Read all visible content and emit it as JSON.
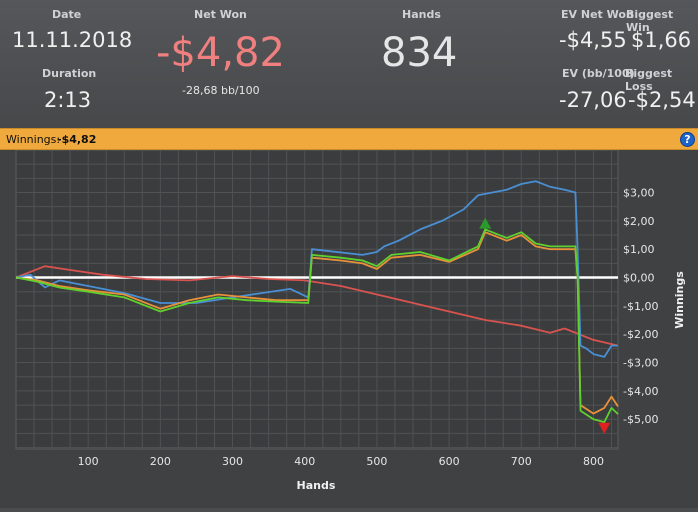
{
  "stats": {
    "date_label": "Date",
    "date_value": "11.11.2018",
    "duration_label": "Duration",
    "duration_value": "2:13",
    "net_won_label": "Net Won",
    "net_won_value": "-$4,82",
    "bb_per_100": "-28,68 bb/100",
    "hands_label": "Hands",
    "hands_value": "834",
    "ev_net_won_label": "EV Net Won",
    "ev_net_won_value": "-$4,55",
    "biggest_win_label": "Biggest Win",
    "biggest_win_value": "$1,66",
    "ev_bb_label": "EV (bb/100)",
    "ev_bb_value": "-27,06",
    "biggest_loss_label": "Biggest Loss",
    "biggest_loss_value": "-$2,54"
  },
  "winnings_bar": {
    "label": "Winnings:",
    "value": "-$4,82",
    "help_icon": "?"
  },
  "colors": {
    "net_won": "#f08080",
    "accent_bar": "#f0a93c",
    "series_green": "#5fd12e",
    "series_orange": "#e8913a",
    "series_blue": "#4a8fd4",
    "series_red": "#d9534f",
    "zero_line": "#ffffff"
  },
  "chart_data": {
    "type": "line",
    "xlabel": "Hands",
    "ylabel": "Winnings",
    "xlim": [
      0,
      834
    ],
    "ylim": [
      -6,
      4
    ],
    "x_ticks": [
      100,
      200,
      300,
      400,
      500,
      600,
      700,
      800
    ],
    "x_tick_labels": [
      "100",
      "200",
      "300",
      "400",
      "500",
      "600",
      "700",
      "800"
    ],
    "y_ticks": [
      3,
      2,
      1,
      0,
      -1,
      -2,
      -3,
      -4,
      -5
    ],
    "y_tick_labels": [
      "$3,00",
      "$2,00",
      "$1,00",
      "$0,00",
      "-$1,00",
      "-$2,00",
      "-$3,00",
      "-$4,00",
      "-$5,00"
    ],
    "grid": true,
    "series": [
      {
        "key": "blue",
        "points": [
          [
            0,
            0
          ],
          [
            20,
            0.1
          ],
          [
            40,
            -0.35
          ],
          [
            60,
            -0.1
          ],
          [
            100,
            -0.3
          ],
          [
            150,
            -0.55
          ],
          [
            200,
            -0.9
          ],
          [
            250,
            -0.9
          ],
          [
            300,
            -0.7
          ],
          [
            380,
            -0.4
          ],
          [
            405,
            -0.7
          ],
          [
            410,
            1.0
          ],
          [
            480,
            0.8
          ],
          [
            500,
            0.9
          ],
          [
            510,
            1.1
          ],
          [
            530,
            1.3
          ],
          [
            560,
            1.7
          ],
          [
            590,
            2.0
          ],
          [
            620,
            2.4
          ],
          [
            640,
            2.9
          ],
          [
            660,
            3.0
          ],
          [
            680,
            3.1
          ],
          [
            700,
            3.3
          ],
          [
            720,
            3.4
          ],
          [
            740,
            3.2
          ],
          [
            760,
            3.1
          ],
          [
            775,
            3.0
          ],
          [
            778,
            1.0
          ],
          [
            782,
            -2.4
          ],
          [
            790,
            -2.5
          ],
          [
            800,
            -2.7
          ],
          [
            815,
            -2.8
          ],
          [
            825,
            -2.4
          ],
          [
            834,
            -2.4
          ]
        ]
      },
      {
        "key": "orange",
        "points": [
          [
            0,
            0
          ],
          [
            30,
            -0.1
          ],
          [
            60,
            -0.3
          ],
          [
            100,
            -0.45
          ],
          [
            150,
            -0.6
          ],
          [
            200,
            -1.1
          ],
          [
            240,
            -0.8
          ],
          [
            280,
            -0.6
          ],
          [
            320,
            -0.7
          ],
          [
            360,
            -0.8
          ],
          [
            405,
            -0.8
          ],
          [
            410,
            0.7
          ],
          [
            450,
            0.6
          ],
          [
            480,
            0.5
          ],
          [
            500,
            0.3
          ],
          [
            520,
            0.7
          ],
          [
            560,
            0.8
          ],
          [
            600,
            0.55
          ],
          [
            640,
            1.0
          ],
          [
            650,
            1.6
          ],
          [
            680,
            1.3
          ],
          [
            700,
            1.5
          ],
          [
            720,
            1.1
          ],
          [
            740,
            1.0
          ],
          [
            775,
            1.0
          ],
          [
            778,
            0
          ],
          [
            782,
            -4.5
          ],
          [
            800,
            -4.8
          ],
          [
            815,
            -4.6
          ],
          [
            825,
            -4.2
          ],
          [
            834,
            -4.55
          ]
        ]
      },
      {
        "key": "green",
        "points": [
          [
            0,
            0
          ],
          [
            30,
            -0.15
          ],
          [
            60,
            -0.35
          ],
          [
            100,
            -0.5
          ],
          [
            150,
            -0.7
          ],
          [
            200,
            -1.2
          ],
          [
            240,
            -0.9
          ],
          [
            280,
            -0.7
          ],
          [
            320,
            -0.8
          ],
          [
            360,
            -0.85
          ],
          [
            405,
            -0.9
          ],
          [
            410,
            0.8
          ],
          [
            450,
            0.7
          ],
          [
            480,
            0.6
          ],
          [
            500,
            0.4
          ],
          [
            520,
            0.8
          ],
          [
            560,
            0.9
          ],
          [
            600,
            0.6
          ],
          [
            640,
            1.1
          ],
          [
            650,
            1.7
          ],
          [
            680,
            1.4
          ],
          [
            700,
            1.6
          ],
          [
            720,
            1.2
          ],
          [
            740,
            1.1
          ],
          [
            775,
            1.1
          ],
          [
            778,
            0
          ],
          [
            782,
            -4.7
          ],
          [
            800,
            -5.0
          ],
          [
            815,
            -5.1
          ],
          [
            825,
            -4.6
          ],
          [
            834,
            -4.82
          ]
        ]
      },
      {
        "key": "red",
        "points": [
          [
            0,
            0
          ],
          [
            40,
            0.4
          ],
          [
            80,
            0.25
          ],
          [
            120,
            0.1
          ],
          [
            180,
            -0.05
          ],
          [
            240,
            -0.1
          ],
          [
            300,
            0.05
          ],
          [
            350,
            -0.05
          ],
          [
            400,
            -0.1
          ],
          [
            450,
            -0.3
          ],
          [
            500,
            -0.6
          ],
          [
            550,
            -0.9
          ],
          [
            600,
            -1.2
          ],
          [
            650,
            -1.5
          ],
          [
            700,
            -1.7
          ],
          [
            740,
            -1.95
          ],
          [
            760,
            -1.8
          ],
          [
            800,
            -2.2
          ],
          [
            834,
            -2.4
          ]
        ]
      }
    ],
    "markers": [
      {
        "type": "max",
        "x": 650,
        "y": 1.9,
        "shape": "triangle-up",
        "color": "#2a9a2a"
      },
      {
        "type": "min",
        "x": 815,
        "y": -5.3,
        "shape": "triangle-down",
        "color": "#e02020"
      }
    ]
  }
}
